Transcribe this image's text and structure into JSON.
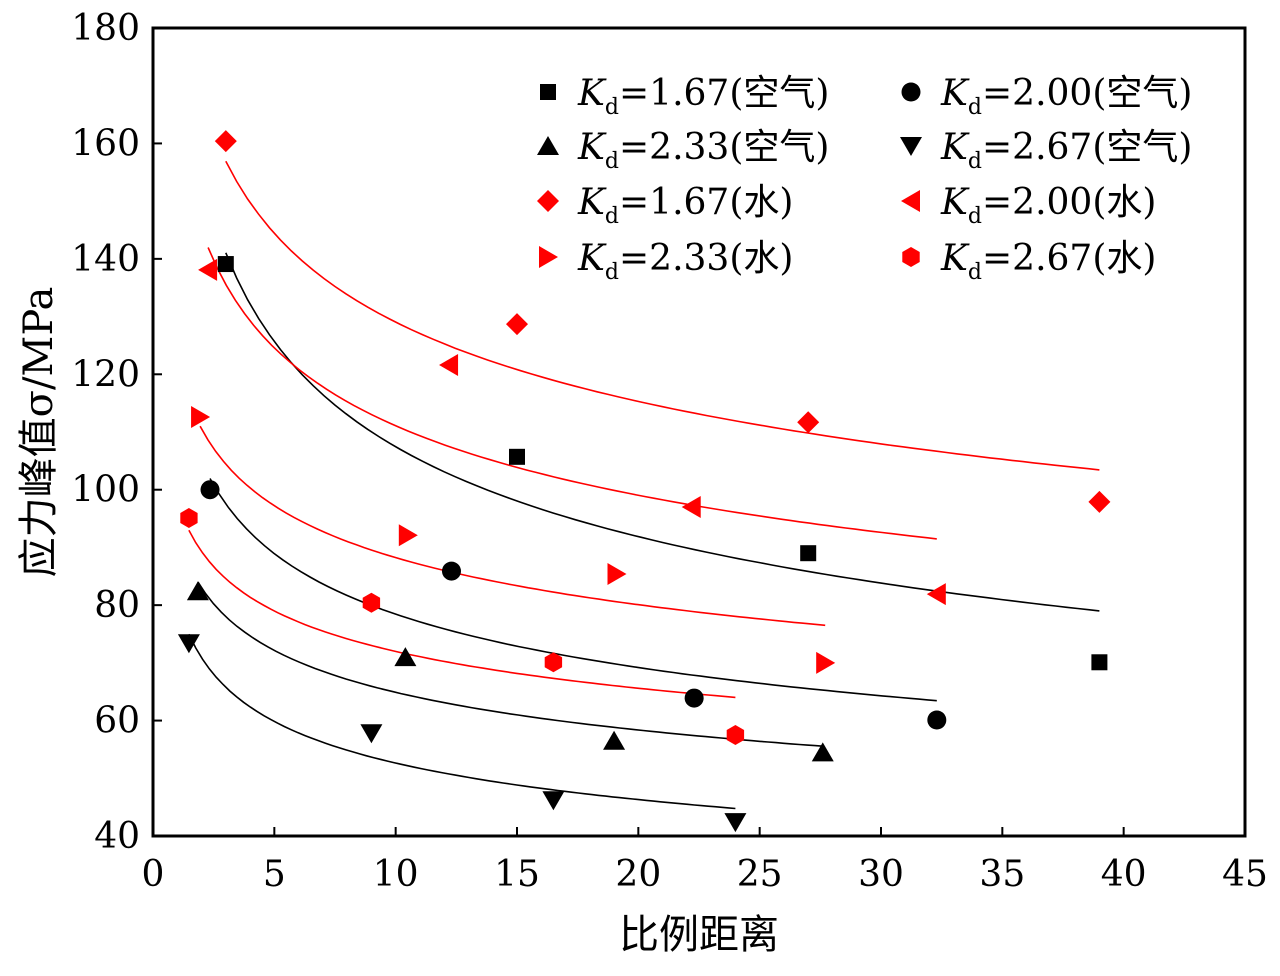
{
  "chart_data": {
    "type": "scatter",
    "title": "",
    "xlabel": "比例距离",
    "ylabel": "应力峰值σ/MPa",
    "xlim": [
      0,
      45
    ],
    "ylim": [
      40,
      180
    ],
    "xticks": [
      0,
      5,
      10,
      15,
      20,
      25,
      30,
      35,
      40,
      45
    ],
    "yticks": [
      40,
      60,
      80,
      100,
      120,
      140,
      160,
      180
    ],
    "grid": false,
    "legend_position": "top-right",
    "series": [
      {
        "name": "Kd=1.67(空气)",
        "marker": "square",
        "color": "#000000",
        "x": [
          3.0,
          15.0,
          27.0,
          39.0
        ],
        "y": [
          139.1,
          105.7,
          89.0,
          70.1
        ],
        "fit": {
          "type": "power",
          "a": 180.8,
          "b": -0.226,
          "range": [
            3.0,
            39.0
          ]
        }
      },
      {
        "name": "Kd=2.00(空气)",
        "marker": "circle",
        "color": "#000000",
        "x": [
          2.35,
          12.3,
          22.3,
          32.3
        ],
        "y": [
          100.0,
          85.9,
          63.9,
          60.1
        ],
        "fit": {
          "type": "power",
          "a": 119.0,
          "b": -0.181,
          "range": [
            2.35,
            32.3
          ]
        }
      },
      {
        "name": "Kd=2.33(空气)",
        "marker": "triangle-up",
        "color": "#000000",
        "x": [
          1.85,
          10.4,
          19.0,
          27.6
        ],
        "y": [
          82.4,
          71.0,
          56.5,
          54.5
        ],
        "fit": {
          "type": "power",
          "a": 92.3,
          "b": -0.153,
          "range": [
            1.85,
            27.6
          ]
        }
      },
      {
        "name": "Kd=2.67(空气)",
        "marker": "triangle-down",
        "color": "#000000",
        "x": [
          1.48,
          9.0,
          16.5,
          24.0
        ],
        "y": [
          73.4,
          57.8,
          46.2,
          42.4
        ],
        "fit": {
          "type": "power",
          "a": 80.6,
          "b": -0.185,
          "range": [
            1.48,
            24.0
          ]
        }
      },
      {
        "name": "Kd=1.67(水)",
        "marker": "diamond",
        "color": "#ff0000",
        "x": [
          3.0,
          15.0,
          27.0,
          39.0
        ],
        "y": [
          160.4,
          128.7,
          111.7,
          97.9
        ],
        "fit": {
          "type": "power",
          "a": 187.6,
          "b": -0.1625,
          "range": [
            3.0,
            39.0
          ]
        }
      },
      {
        "name": "Kd=2.00(水)",
        "marker": "triangle-left",
        "color": "#ff0000",
        "x": [
          2.27,
          12.2,
          22.2,
          32.3
        ],
        "y": [
          138.1,
          121.6,
          97.0,
          81.9
        ],
        "fit": {
          "type": "power",
          "a": 162.6,
          "b": -0.1655,
          "range": [
            2.27,
            32.3
          ]
        }
      },
      {
        "name": "Kd=2.33(水)",
        "marker": "triangle-right",
        "color": "#ff0000",
        "x": [
          1.94,
          10.5,
          19.1,
          27.7
        ],
        "y": [
          112.6,
          92.1,
          85.4,
          70.0
        ],
        "fit": {
          "type": "power",
          "a": 121.8,
          "b": -0.14,
          "range": [
            1.94,
            27.7
          ]
        }
      },
      {
        "name": "Kd=2.67(水)",
        "marker": "hexagon",
        "color": "#ff0000",
        "x": [
          1.48,
          9.0,
          16.5,
          24.0
        ],
        "y": [
          95.1,
          80.4,
          70.1,
          57.5
        ],
        "fit": {
          "type": "power",
          "a": 98.0,
          "b": -0.134,
          "range": [
            1.48,
            24.0
          ]
        }
      }
    ]
  }
}
